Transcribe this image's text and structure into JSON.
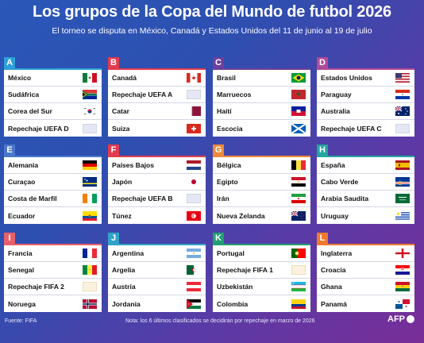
{
  "header": {
    "title": "Los grupos de la Copa del Mundo de futbol 2026",
    "subtitle": "El torneo se disputa en México, Canadá y Estados Unidos del 11 de junio al 19 de julio"
  },
  "colors": {
    "A": "#2f9fd8",
    "B": "#e23b4e",
    "C": "#6d3f9e",
    "D": "#b04a98",
    "E": "#4a77c9",
    "F": "#e23b4e",
    "G": "#f08a3a",
    "H": "#20a6a0",
    "I": "#e8606a",
    "J": "#2fa3c8",
    "K": "#20a070",
    "L": "#f07a2e"
  },
  "groups": [
    {
      "letter": "A",
      "teams": [
        {
          "name": "México",
          "flag": "mexico"
        },
        {
          "name": "Sudáfrica",
          "flag": "south-africa"
        },
        {
          "name": "Corea del Sur",
          "flag": "south-korea"
        },
        {
          "name": "Repechaje UEFA D",
          "flag": "placeholder"
        }
      ]
    },
    {
      "letter": "B",
      "teams": [
        {
          "name": "Canadá",
          "flag": "canada"
        },
        {
          "name": "Repechaje UEFA A",
          "flag": "placeholder"
        },
        {
          "name": "Catar",
          "flag": "qatar"
        },
        {
          "name": "Suiza",
          "flag": "switzerland"
        }
      ]
    },
    {
      "letter": "C",
      "teams": [
        {
          "name": "Brasil",
          "flag": "brazil"
        },
        {
          "name": "Marruecos",
          "flag": "morocco"
        },
        {
          "name": "Haití",
          "flag": "haiti"
        },
        {
          "name": "Escocia",
          "flag": "scotland"
        }
      ]
    },
    {
      "letter": "D",
      "teams": [
        {
          "name": "Estados Unidos",
          "flag": "usa"
        },
        {
          "name": "Paraguay",
          "flag": "paraguay"
        },
        {
          "name": "Australia",
          "flag": "australia"
        },
        {
          "name": "Repechaje UEFA C",
          "flag": "placeholder"
        }
      ]
    },
    {
      "letter": "E",
      "teams": [
        {
          "name": "Alemania",
          "flag": "germany"
        },
        {
          "name": "Curaçao",
          "flag": "curacao"
        },
        {
          "name": "Costa de Marfil",
          "flag": "ivory-coast"
        },
        {
          "name": "Ecuador",
          "flag": "ecuador"
        }
      ]
    },
    {
      "letter": "F",
      "teams": [
        {
          "name": "Países Bajos",
          "flag": "netherlands"
        },
        {
          "name": "Japón",
          "flag": "japan"
        },
        {
          "name": "Repechaje UEFA B",
          "flag": "placeholder"
        },
        {
          "name": "Túnez",
          "flag": "tunisia"
        }
      ]
    },
    {
      "letter": "G",
      "teams": [
        {
          "name": "Bélgica",
          "flag": "belgium"
        },
        {
          "name": "Egipto",
          "flag": "egypt"
        },
        {
          "name": "Irán",
          "flag": "iran"
        },
        {
          "name": "Nueva Zelanda",
          "flag": "new-zealand"
        }
      ]
    },
    {
      "letter": "H",
      "teams": [
        {
          "name": "España",
          "flag": "spain"
        },
        {
          "name": "Cabo Verde",
          "flag": "cape-verde"
        },
        {
          "name": "Arabia Saudita",
          "flag": "saudi-arabia"
        },
        {
          "name": "Uruguay",
          "flag": "uruguay"
        }
      ]
    },
    {
      "letter": "I",
      "teams": [
        {
          "name": "Francia",
          "flag": "france"
        },
        {
          "name": "Senegal",
          "flag": "senegal"
        },
        {
          "name": "Repechaje FIFA 2",
          "flag": "placeholder-fifa"
        },
        {
          "name": "Noruega",
          "flag": "norway"
        }
      ]
    },
    {
      "letter": "J",
      "teams": [
        {
          "name": "Argentina",
          "flag": "argentina"
        },
        {
          "name": "Argelia",
          "flag": "algeria"
        },
        {
          "name": "Austria",
          "flag": "austria"
        },
        {
          "name": "Jordania",
          "flag": "jordan"
        }
      ]
    },
    {
      "letter": "K",
      "teams": [
        {
          "name": "Portugal",
          "flag": "portugal"
        },
        {
          "name": "Repechaje FIFA 1",
          "flag": "placeholder-fifa"
        },
        {
          "name": "Uzbekistán",
          "flag": "uzbekistan"
        },
        {
          "name": "Colombia",
          "flag": "colombia"
        }
      ]
    },
    {
      "letter": "L",
      "teams": [
        {
          "name": "Inglaterra",
          "flag": "england"
        },
        {
          "name": "Croacia",
          "flag": "croatia"
        },
        {
          "name": "Ghana",
          "flag": "ghana"
        },
        {
          "name": "Panamá",
          "flag": "panama"
        }
      ]
    }
  ],
  "footer": {
    "source": "Fuente: FIFA",
    "note": "Nota: los 6 últimos clasificados se decidirán por repechaje en marzo de 2026",
    "logo": "AFP"
  }
}
